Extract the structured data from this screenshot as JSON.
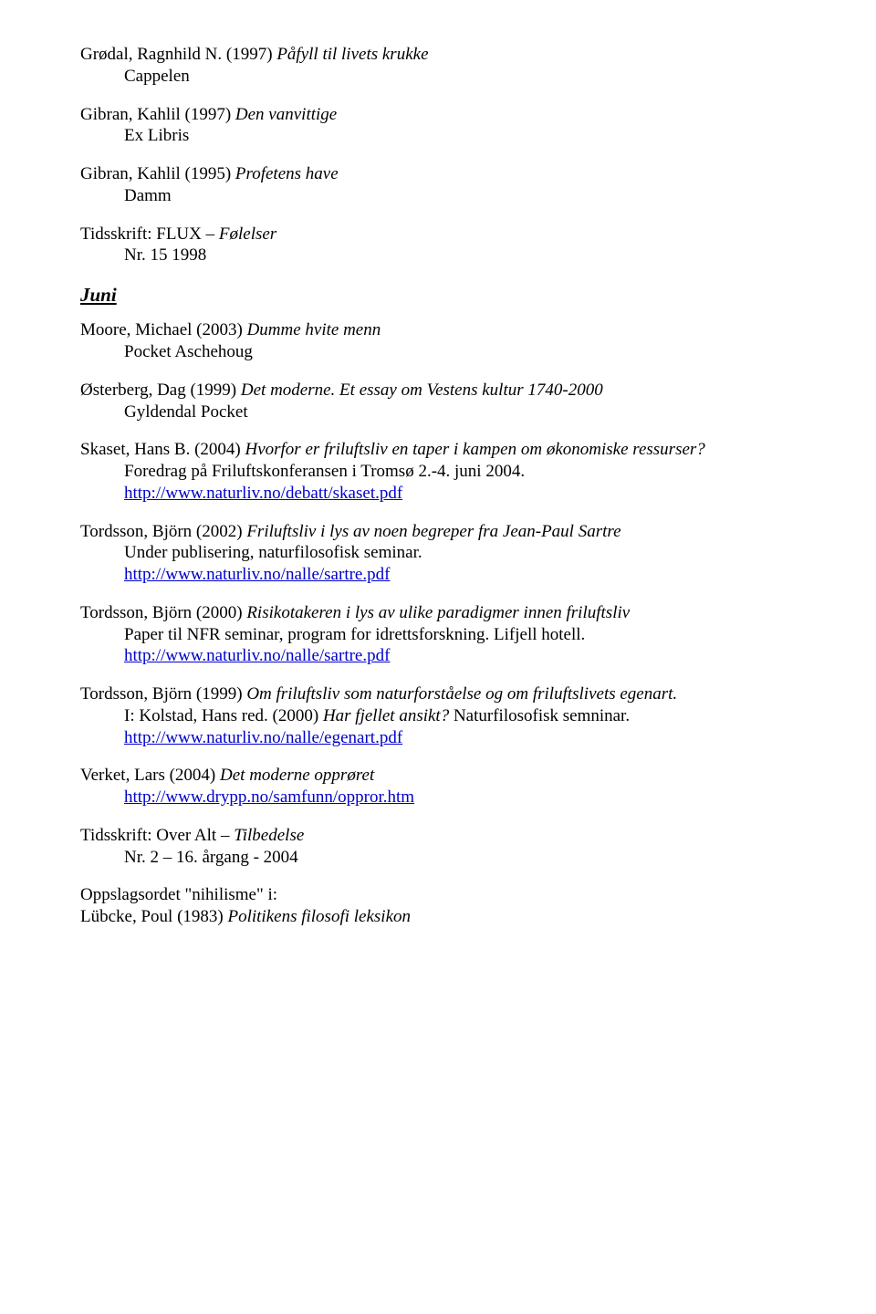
{
  "e1": {
    "l1a": "Grødal, Ragnhild N. (1997) ",
    "l1b": "Påfyll til livets krukke",
    "l2": "Cappelen"
  },
  "e2": {
    "l1a": "Gibran, Kahlil (1997) ",
    "l1b": "Den vanvittige",
    "l2": "Ex Libris"
  },
  "e3": {
    "l1a": "Gibran, Kahlil (1995) ",
    "l1b": "Profetens have",
    "l2": "Damm"
  },
  "e4": {
    "l1a": "Tidsskrift: FLUX – ",
    "l1b": "Følelser",
    "l2": "Nr. 15 1998"
  },
  "juni": "Juni",
  "e5": {
    "l1a": "Moore, Michael (2003) ",
    "l1b": "Dumme hvite menn",
    "l2": "Pocket Aschehoug"
  },
  "e6": {
    "l1a": "Østerberg, Dag (1999) ",
    "l1b": "Det moderne. Et essay om Vestens kultur 1740-2000",
    "l2": "Gyldendal Pocket"
  },
  "e7": {
    "l1a": "Skaset, Hans B. (2004) ",
    "l1b": "Hvorfor er friluftsliv en taper i kampen om økonomiske ressurser?",
    "l2": "Foredrag på Friluftskonferansen i Tromsø 2.-4. juni 2004.",
    "link": "http://www.naturliv.no/debatt/skaset.pdf"
  },
  "e8": {
    "l1a": "Tordsson, Björn (2002) ",
    "l1b": "Friluftsliv i lys av noen begreper fra Jean-Paul Sartre",
    "l2": "Under publisering, naturfilosofisk seminar.",
    "link": "http://www.naturliv.no/nalle/sartre.pdf"
  },
  "e9": {
    "l1a": "Tordsson, Björn (2000) ",
    "l1b": "Risikotakeren i lys av ulike paradigmer innen friluftsliv",
    "l2": "Paper til NFR seminar, program for idrettsforskning. Lifjell hotell.",
    "link": "http://www.naturliv.no/nalle/sartre.pdf"
  },
  "e10": {
    "l1a": "Tordsson, Björn (1999) ",
    "l1b": "Om friluftsliv som naturforståelse og om friluftslivets egenart.",
    "l2a": "I: Kolstad, Hans red. (2000) ",
    "l2b": "Har fjellet ansikt?",
    "l2c": " Naturfilosofisk semninar.",
    "link": "http://www.naturliv.no/nalle/egenart.pdf"
  },
  "e11": {
    "l1a": "Verket, Lars (2004) ",
    "l1b": "Det moderne opprøret",
    "link": "http://www.drypp.no/samfunn/oppror.htm"
  },
  "e12": {
    "l1a": "Tidsskrift: Over Alt – ",
    "l1b": "Tilbedelse",
    "l2": "Nr. 2 – 16. årgang - 2004"
  },
  "e13": {
    "l1": "Oppslagsordet \"nihilisme\" i:",
    "l2a": "Lübcke, Poul (1983) ",
    "l2b": "Politikens filosofi leksikon"
  }
}
